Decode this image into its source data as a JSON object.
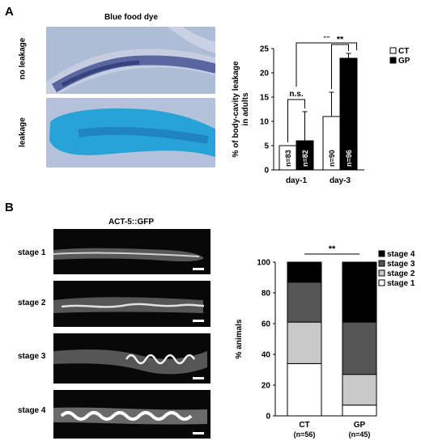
{
  "panel_a": {
    "letter": "A",
    "image_title": "Blue food dye",
    "row_labels": [
      "no leakage",
      "leakage"
    ]
  },
  "panel_b": {
    "letter": "B",
    "image_title": "ACT-5::GFP",
    "row_labels": [
      "stage 1",
      "stage 2",
      "stage 3",
      "stage 4"
    ]
  },
  "chart_data": [
    {
      "type": "bar",
      "ylabel": "% of body-cavity leakage in adults",
      "ylim": [
        0,
        25
      ],
      "yticks": [
        0,
        5,
        10,
        15,
        20,
        25
      ],
      "categories": [
        "day-1",
        "day-3"
      ],
      "series": [
        {
          "name": "CT",
          "values": [
            5,
            11
          ],
          "errors": [
            0,
            5
          ],
          "n_labels": [
            "n=83",
            "n=90"
          ],
          "color": "#ffffff"
        },
        {
          "name": "GP",
          "values": [
            6,
            23
          ],
          "errors": [
            6,
            1
          ],
          "n_labels": [
            "n=82",
            "n=96"
          ],
          "color": "#000000"
        }
      ],
      "legend": "top-right",
      "annotations": [
        "n.s.",
        "**",
        "**"
      ]
    },
    {
      "type": "stacked-bar",
      "ylabel": "% animals",
      "ylim": [
        0,
        100
      ],
      "yticks": [
        0,
        20,
        40,
        60,
        80,
        100
      ],
      "categories": [
        "CT",
        "GP"
      ],
      "category_sublabels": [
        "(n=56)",
        "(n=45)"
      ],
      "series": [
        {
          "name": "stage 1",
          "values": [
            34,
            7
          ],
          "color": "#ffffff"
        },
        {
          "name": "stage 2",
          "values": [
            27,
            20
          ],
          "color": "#c8c8c8"
        },
        {
          "name": "stage 3",
          "values": [
            26,
            34
          ],
          "color": "#555555"
        },
        {
          "name": "stage 4",
          "values": [
            13,
            39
          ],
          "color": "#000000"
        }
      ],
      "legend_order": [
        "stage 4",
        "stage 3",
        "stage 2",
        "stage 1"
      ],
      "legend": "top-right",
      "annotations": [
        "**"
      ]
    }
  ]
}
